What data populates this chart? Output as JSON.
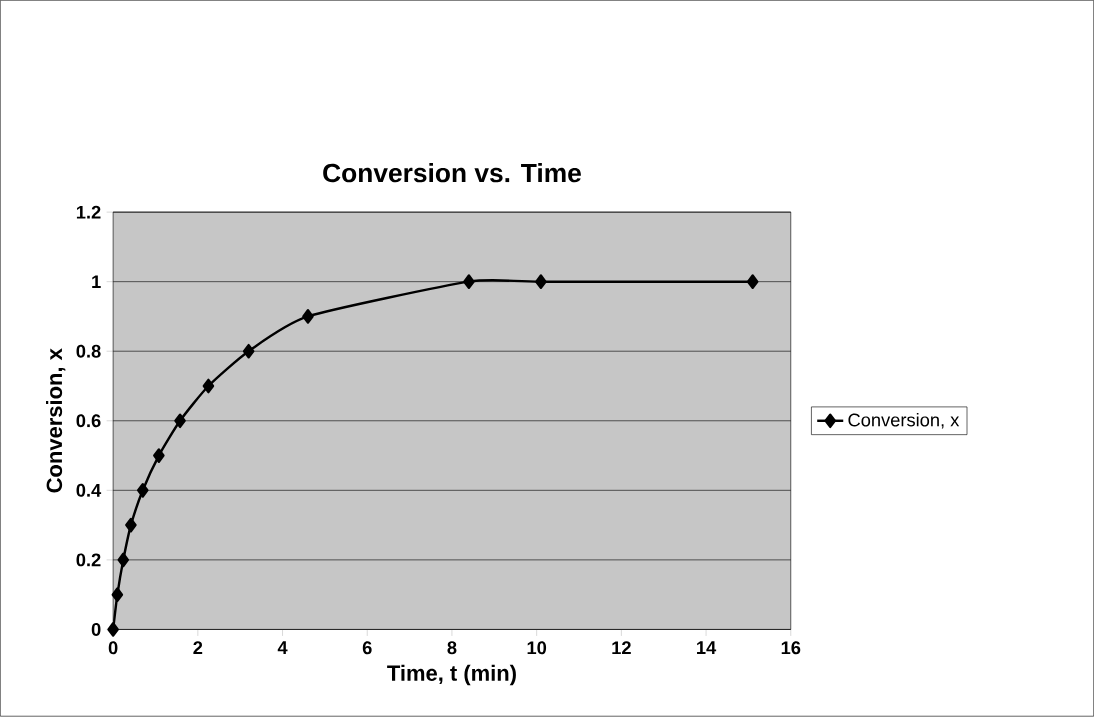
{
  "chart_data": {
    "type": "line",
    "title": "Conversion vs. Time",
    "xlabel": "Time, t (min)",
    "ylabel": "Conversion, x",
    "x": [
      0,
      0.1,
      0.24,
      0.42,
      0.7,
      1.08,
      1.58,
      2.25,
      3.2,
      4.6,
      8.4,
      10.1,
      15.1
    ],
    "series": [
      {
        "name": "Conversion, x",
        "color": "#000000",
        "values": [
          0,
          0.1,
          0.2,
          0.3,
          0.4,
          0.5,
          0.6,
          0.7,
          0.8,
          0.9,
          1,
          1,
          1
        ]
      }
    ],
    "xlim": [
      0,
      16
    ],
    "xticks": [
      0,
      2,
      4,
      6,
      8,
      10,
      12,
      14,
      16
    ],
    "ylim": [
      0,
      1.2
    ],
    "yticks": [
      0,
      0.2,
      0.4,
      0.6,
      0.8,
      1,
      1.2
    ],
    "grid": "y",
    "legend": "right",
    "marker": "diamond",
    "line_style": "solid"
  }
}
